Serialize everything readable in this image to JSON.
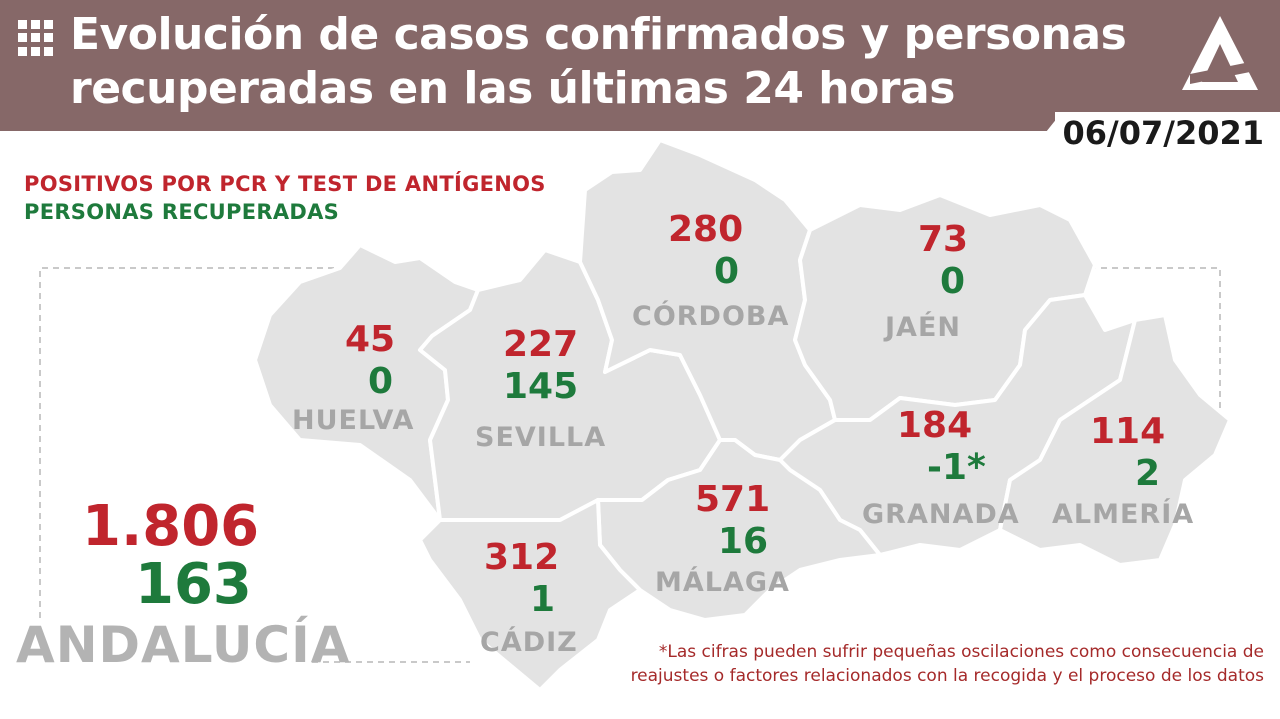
{
  "header": {
    "title": "Evolución de casos confirmados y personas recuperadas en las últimas 24 horas",
    "date": "06/07/2021"
  },
  "legend": {
    "positives_label": "POSITIVOS POR PCR Y TEST DE ANTÍGENOS",
    "recovered_label": "PERSONAS RECUPERADAS"
  },
  "colors": {
    "header_bg": "#866868",
    "positives": "#c0252d",
    "recovered": "#1e7a3c",
    "map_fill": "#e3e3e3",
    "label_grey": "#a6a6a6"
  },
  "provinces": {
    "huelva": {
      "name": "HUELVA",
      "positives": "45",
      "recovered": "0"
    },
    "sevilla": {
      "name": "SEVILLA",
      "positives": "227",
      "recovered": "145"
    },
    "cordoba": {
      "name": "CÓRDOBA",
      "positives": "280",
      "recovered": "0"
    },
    "jaen": {
      "name": "JAÉN",
      "positives": "73",
      "recovered": "0"
    },
    "granada": {
      "name": "GRANADA",
      "positives": "184",
      "recovered": "-1*"
    },
    "almeria": {
      "name": "ALMERÍA",
      "positives": "114",
      "recovered": "2"
    },
    "malaga": {
      "name": "MÁLAGA",
      "positives": "571",
      "recovered": "16"
    },
    "cadiz": {
      "name": "CÁDIZ",
      "positives": "312",
      "recovered": "1"
    }
  },
  "total": {
    "name": "ANDALUCÍA",
    "positives": "1.806",
    "recovered": "163"
  },
  "footnote": "*Las cifras pueden sufrir pequeñas oscilaciones como consecuencia de reajustes o factores relacionados con la recogida y el proceso de los datos"
}
